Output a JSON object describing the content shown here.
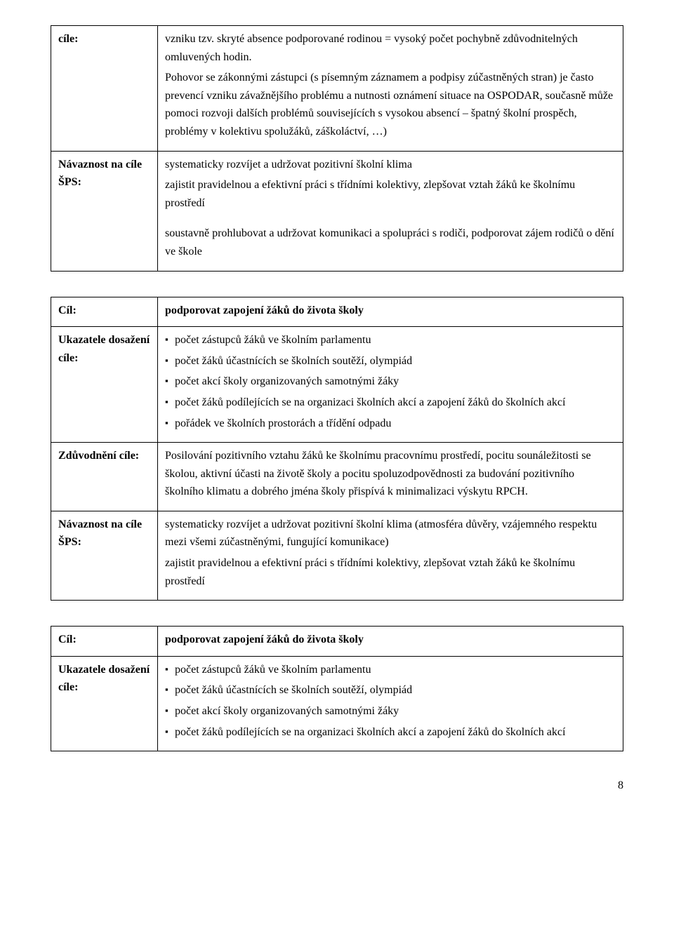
{
  "section1": {
    "row1": {
      "label": "cíle:",
      "paras": [
        "vzniku tzv. skryté absence podporované rodinou = vysoký počet pochybně zdůvodnitelných omluvených hodin.",
        "Pohovor se zákonnými zástupci (s písemným záznamem a podpisy zúčastněných stran) je často prevencí vzniku závažnějšího problému a nutnosti oznámení situace na OSPODAR, současně může pomoci rozvoji dalších problémů souvisejících s vysokou absencí – špatný školní prospěch, problémy v kolektivu spolužáků, záškoláctví, …)"
      ]
    },
    "row2": {
      "label": "Návaznost na cíle ŠPS:",
      "paras": [
        "systematicky rozvíjet a udržovat pozitivní školní klima",
        "zajistit pravidelnou a efektivní práci s třídními kolektivy, zlepšovat vztah žáků ke školnímu prostředí",
        "",
        "soustavně prohlubovat a udržovat komunikaci a spolupráci s rodiči, podporovat zájem rodičů o dění ve škole"
      ]
    }
  },
  "section2": {
    "row1": {
      "label": "Cíl:",
      "bold": "podporovat zapojení žáků do života školy"
    },
    "row2": {
      "label": "Ukazatele dosažení cíle:",
      "bullets": [
        "počet zástupců žáků ve školním parlamentu",
        "počet žáků účastnících se školních soutěží, olympiád",
        "počet akcí školy organizovaných samotnými žáky",
        "počet žáků podílejících se na organizaci školních akcí a zapojení žáků do školních akcí",
        "pořádek ve školních prostorách a třídění odpadu"
      ]
    },
    "row3": {
      "label": "Zdůvodnění cíle:",
      "paras": [
        "Posilování pozitivního vztahu žáků ke školnímu pracovnímu prostředí, pocitu sounáležitosti se školou, aktivní účasti na životě školy a pocitu spoluzodpovědnosti za budování pozitivního školního klimatu a dobrého jména školy přispívá k minimalizaci výskytu RPCH."
      ]
    },
    "row4": {
      "label": "Návaznost na cíle ŠPS:",
      "paras": [
        "systematicky rozvíjet a udržovat pozitivní školní klima (atmosféra důvěry, vzájemného respektu mezi všemi zúčastněnými, fungující komunikace)",
        "zajistit pravidelnou a efektivní práci s třídními kolektivy, zlepšovat vztah žáků ke školnímu prostředí"
      ]
    }
  },
  "section3": {
    "row1": {
      "label": "Cíl:",
      "bold": "podporovat zapojení žáků do života školy"
    },
    "row2": {
      "label": "Ukazatele dosažení cíle:",
      "bullets": [
        "počet zástupců žáků ve školním parlamentu",
        "počet žáků účastnících se školních soutěží, olympiád",
        "počet akcí školy organizovaných samotnými žáky",
        "počet žáků podílejících se na organizaci školních akcí a zapojení žáků do školních akcí"
      ]
    }
  },
  "page_number": "8"
}
